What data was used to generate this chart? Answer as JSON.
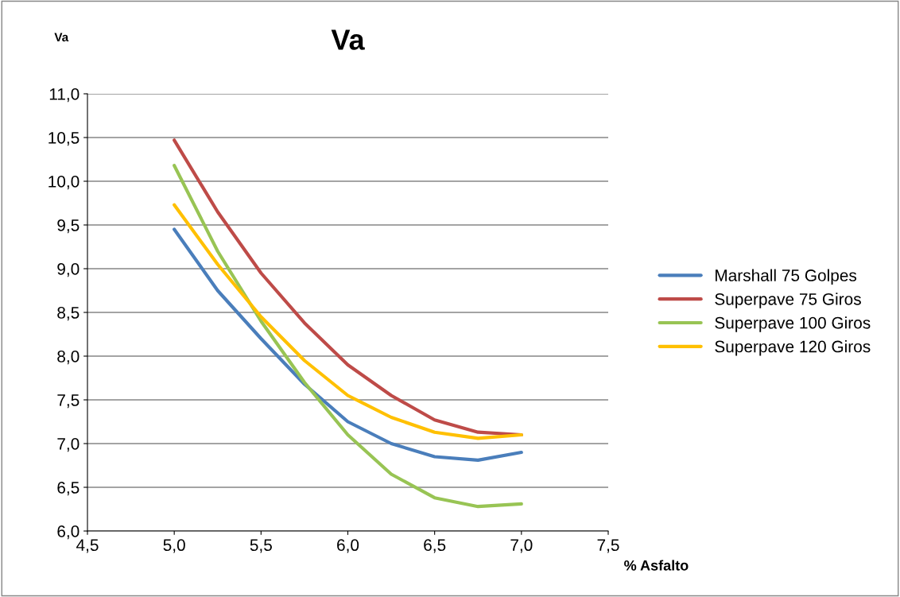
{
  "chart_data": {
    "type": "line",
    "title": "Va",
    "ylabel": "Va",
    "xlabel": "% Asfalto",
    "x": [
      5.0,
      5.25,
      5.5,
      5.75,
      6.0,
      6.25,
      6.5,
      6.75,
      7.0
    ],
    "series": [
      {
        "name": "Marshall 75 Golpes",
        "color": "#4a7ebb",
        "values": [
          9.45,
          8.75,
          8.2,
          7.68,
          7.25,
          7.0,
          6.85,
          6.81,
          6.9
        ]
      },
      {
        "name": "Superpave 75 Giros",
        "color": "#be4b48",
        "values": [
          10.47,
          9.65,
          8.95,
          8.38,
          7.9,
          7.55,
          7.27,
          7.13,
          7.1
        ]
      },
      {
        "name": "Superpave 100 Giros",
        "color": "#98c454",
        "values": [
          10.18,
          9.2,
          8.4,
          7.7,
          7.1,
          6.65,
          6.38,
          6.28,
          6.31
        ]
      },
      {
        "name": "Superpave 120 Giros",
        "color": "#ffc000",
        "values": [
          9.73,
          9.05,
          8.45,
          7.95,
          7.55,
          7.3,
          7.13,
          7.06,
          7.1
        ]
      }
    ],
    "xlim": [
      4.5,
      7.5
    ],
    "ylim": [
      6.0,
      11.0
    ],
    "xticks": [
      {
        "value": 4.5,
        "label": "4,5"
      },
      {
        "value": 5.0,
        "label": "5,0"
      },
      {
        "value": 5.5,
        "label": "5,5"
      },
      {
        "value": 6.0,
        "label": "6,0"
      },
      {
        "value": 6.5,
        "label": "6,5"
      },
      {
        "value": 7.0,
        "label": "7,0"
      },
      {
        "value": 7.5,
        "label": "7,5"
      }
    ],
    "yticks": [
      {
        "value": 6.0,
        "label": "6,0"
      },
      {
        "value": 6.5,
        "label": "6,5"
      },
      {
        "value": 7.0,
        "label": "7,0"
      },
      {
        "value": 7.5,
        "label": "7,5"
      },
      {
        "value": 8.0,
        "label": "8,0"
      },
      {
        "value": 8.5,
        "label": "8,5"
      },
      {
        "value": 9.0,
        "label": "9,0"
      },
      {
        "value": 9.5,
        "label": "9,5"
      },
      {
        "value": 10.0,
        "label": "10,0"
      },
      {
        "value": 10.5,
        "label": "10,5"
      },
      {
        "value": 11.0,
        "label": "11,0"
      }
    ],
    "grid": "y",
    "legend": "right",
    "marker": "none",
    "line_style": "solid"
  }
}
